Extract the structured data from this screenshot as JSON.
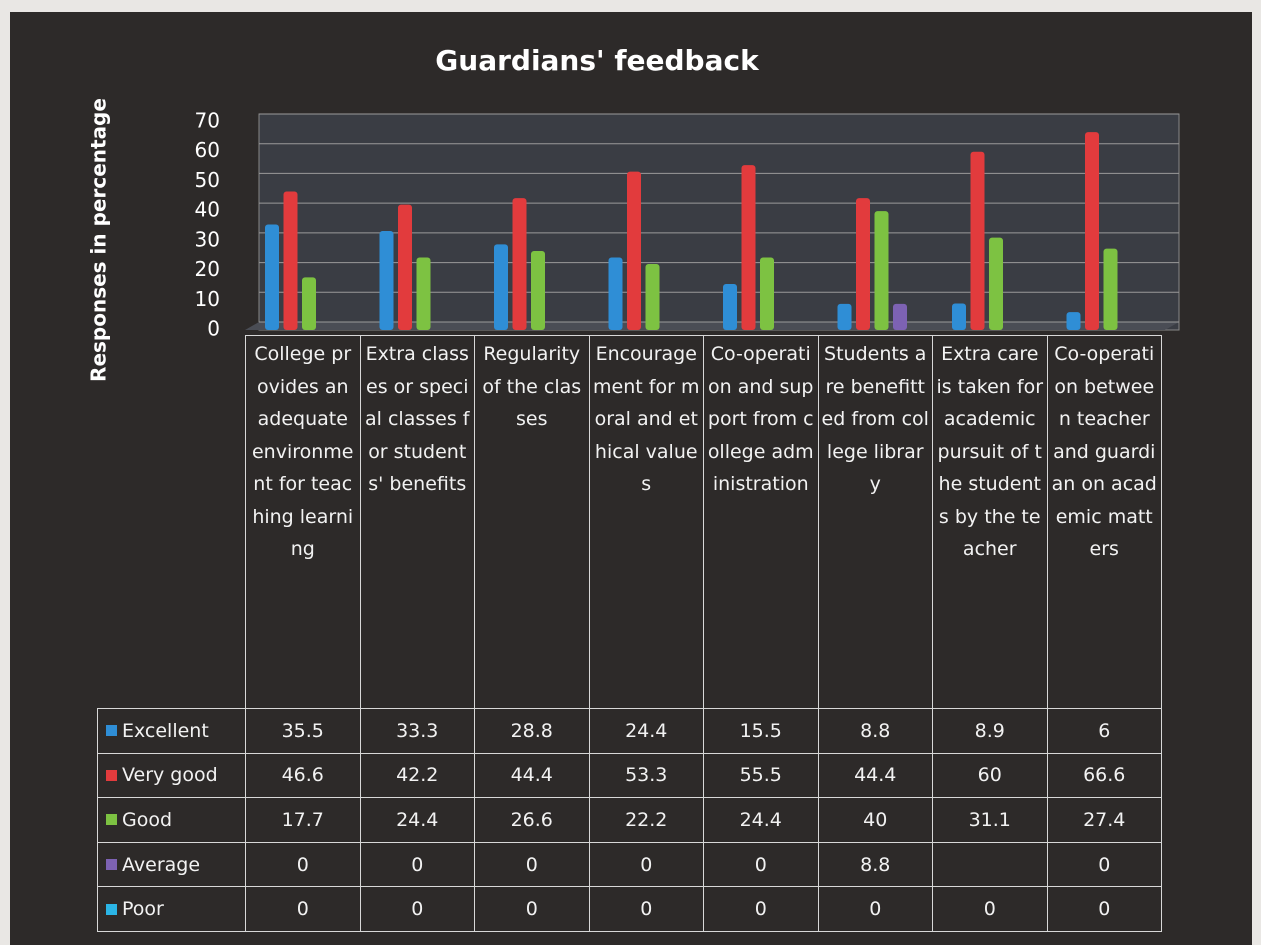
{
  "chart_data": {
    "type": "bar",
    "title": "Guardians' feedback",
    "y_label": "Responses in percentage",
    "categories": [
      "College provides an adequate environment for teaching learning",
      "Extra classes or special classes for students' benefits",
      "Regularity of the classes",
      "Encouragement for moral and ethical values",
      "Co-operation and support from college administration",
      "Students are benefitted from college library",
      "Extra care is taken for academic pursuit of the students by the teacher",
      "Co-operation between teacher and guardian on academic matters"
    ],
    "series": [
      {
        "name": "Excellent",
        "color": "#2f8ed6",
        "values": [
          35.5,
          33.3,
          28.8,
          24.4,
          15.5,
          8.8,
          8.9,
          6
        ]
      },
      {
        "name": "Very good",
        "color": "#e23b3d",
        "values": [
          46.6,
          42.2,
          44.4,
          53.3,
          55.5,
          44.4,
          60,
          66.6
        ]
      },
      {
        "name": "Good",
        "color": "#7dc242",
        "values": [
          17.7,
          24.4,
          26.6,
          22.2,
          24.4,
          40,
          31.1,
          27.4
        ]
      },
      {
        "name": "Average",
        "color": "#7d62b3",
        "values": [
          0,
          0,
          0,
          0,
          0,
          8.8,
          null,
          0
        ]
      },
      {
        "name": "Poor",
        "color": "#2bb5e6",
        "values": [
          0,
          0,
          0,
          0,
          0,
          0,
          0,
          0
        ]
      }
    ],
    "ylim": [
      0,
      70
    ],
    "yticks": [
      0,
      10,
      20,
      30,
      40,
      50,
      60,
      70
    ],
    "grid": true
  }
}
